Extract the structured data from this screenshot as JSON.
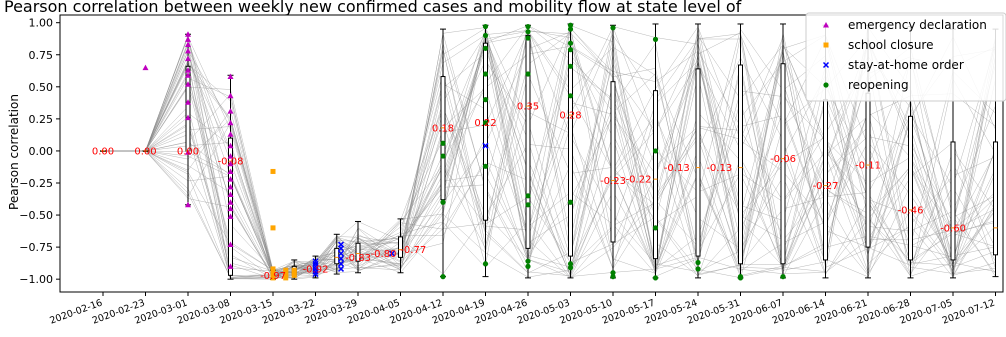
{
  "chart_data": {
    "type": "box",
    "title": "Pearson correlation between weekly new confirmed cases and mobility flow at state level of",
    "xlabel": "",
    "ylabel": "Pearson correlation",
    "ylim": [
      -1.1,
      1.06
    ],
    "yticks": [
      "1.00",
      "0.75",
      "0.50",
      "0.25",
      "0.00",
      "−0.25",
      "−0.50",
      "−0.75",
      "−1.00"
    ],
    "ytick_values": [
      1.0,
      0.75,
      0.5,
      0.25,
      0.0,
      -0.25,
      -0.5,
      -0.75,
      -1.0
    ],
    "categories": [
      "2020-02-16",
      "2020-02-23",
      "2020-03-01",
      "2020-03-08",
      "2020-03-15",
      "2020-03-22",
      "2020-03-29",
      "2020-04-05",
      "2020-04-12",
      "2020-04-19",
      "2020-04-26",
      "2020-05-03",
      "2020-05-10",
      "2020-05-17",
      "2020-05-24",
      "2020-05-31",
      "2020-06-07",
      "2020-06-14",
      "2020-06-21",
      "2020-06-28",
      "2020-07-05",
      "2020-07-12"
    ],
    "x_positions": [
      0,
      1,
      2,
      3,
      4,
      4.5,
      5,
      5.5,
      6,
      7,
      8,
      9,
      10,
      11,
      12,
      13,
      14,
      15,
      16,
      17,
      18,
      19,
      20,
      21
    ],
    "boxes": [
      {
        "x": 0,
        "median": 0.0,
        "q1": 0.0,
        "q3": 0.0,
        "whislo": 0.0,
        "whishi": 0.0
      },
      {
        "x": 1,
        "median": 0.0,
        "q1": 0.0,
        "q3": 0.0,
        "whislo": 0.0,
        "whishi": 0.0
      },
      {
        "x": 2,
        "median": 0.0,
        "q1": 0.0,
        "q3": 0.66,
        "whislo": -0.42,
        "whishi": 0.91
      },
      {
        "x": 3,
        "median": -0.08,
        "q1": -0.97,
        "q3": 0.1,
        "whislo": -1.0,
        "whishi": 0.59
      },
      {
        "x": 4,
        "median": -0.97,
        "q1": -0.99,
        "q3": -0.95,
        "whislo": -1.0,
        "whishi": -0.93
      },
      {
        "x": 4.5,
        "median": -0.94,
        "q1": -0.97,
        "q3": -0.9,
        "whislo": -1.0,
        "whishi": -0.85
      },
      {
        "x": 5,
        "median": -0.92,
        "q1": -0.95,
        "q3": -0.88,
        "whislo": -0.99,
        "whishi": -0.82
      },
      {
        "x": 5.5,
        "median": -0.83,
        "q1": -0.88,
        "q3": -0.76,
        "whislo": -0.96,
        "whishi": -0.65
      },
      {
        "x": 6,
        "median": -0.8,
        "q1": -0.86,
        "q3": -0.72,
        "whislo": -0.95,
        "whishi": -0.55
      },
      {
        "x": 7,
        "median": -0.77,
        "q1": -0.83,
        "q3": -0.67,
        "whislo": -0.95,
        "whishi": -0.53
      },
      {
        "x": 8,
        "median": 0.18,
        "q1": -0.38,
        "q3": 0.58,
        "whislo": -0.98,
        "whishi": 0.95
      },
      {
        "x": 9,
        "median": 0.22,
        "q1": -0.54,
        "q3": 0.84,
        "whislo": -0.98,
        "whishi": 0.98
      },
      {
        "x": 10,
        "median": 0.35,
        "q1": -0.76,
        "q3": 0.9,
        "whislo": -0.99,
        "whishi": 0.98
      },
      {
        "x": 11,
        "median": 0.28,
        "q1": -0.82,
        "q3": 0.79,
        "whislo": -0.99,
        "whishi": 0.99
      },
      {
        "x": 12,
        "median": -0.23,
        "q1": -0.71,
        "q3": 0.54,
        "whislo": -0.99,
        "whishi": 0.98
      },
      {
        "x": 13,
        "median": -0.22,
        "q1": -0.84,
        "q3": 0.47,
        "whislo": -0.99,
        "whishi": 0.99
      },
      {
        "x": 14,
        "median": -0.13,
        "q1": -0.82,
        "q3": 0.64,
        "whislo": -0.99,
        "whishi": 0.99
      },
      {
        "x": 15,
        "median": -0.13,
        "q1": -0.88,
        "q3": 0.67,
        "whislo": -0.99,
        "whishi": 0.99
      },
      {
        "x": 16,
        "median": -0.06,
        "q1": -0.88,
        "q3": 0.68,
        "whislo": -0.99,
        "whishi": 0.99
      },
      {
        "x": 17,
        "median": -0.27,
        "q1": -0.85,
        "q3": 0.4,
        "whislo": -0.99,
        "whishi": 0.98
      },
      {
        "x": 18,
        "median": -0.11,
        "q1": -0.75,
        "q3": 0.45,
        "whislo": -0.99,
        "whishi": 0.98
      },
      {
        "x": 19,
        "median": -0.46,
        "q1": -0.85,
        "q3": 0.27,
        "whislo": -0.99,
        "whishi": 0.97
      },
      {
        "x": 20,
        "median": -0.6,
        "q1": -0.85,
        "q3": 0.07,
        "whislo": -0.99,
        "whishi": 0.95
      },
      {
        "x": 21,
        "median": -0.6,
        "q1": -0.81,
        "q3": 0.07,
        "whislo": -0.98,
        "whishi": 0.95
      }
    ],
    "median_labels": [
      {
        "x": 0,
        "y": 0.0,
        "text": "0.00"
      },
      {
        "x": 1,
        "y": 0.0,
        "text": "0.00"
      },
      {
        "x": 2,
        "y": 0.0,
        "text": "0.00"
      },
      {
        "x": 3,
        "y": -0.08,
        "text": "-0.08"
      },
      {
        "x": 4,
        "y": -0.97,
        "text": "-0.97"
      },
      {
        "x": 5,
        "y": -0.92,
        "text": "-0.92"
      },
      {
        "x": 6,
        "y": -0.83,
        "text": "-0.83"
      },
      {
        "x": 6.6,
        "y": -0.8,
        "text": "-0.80"
      },
      {
        "x": 7.3,
        "y": -0.77,
        "text": "-0.77"
      },
      {
        "x": 8,
        "y": 0.18,
        "text": "0.18"
      },
      {
        "x": 9,
        "y": 0.22,
        "text": "0.22"
      },
      {
        "x": 10,
        "y": 0.35,
        "text": "0.35"
      },
      {
        "x": 11,
        "y": 0.28,
        "text": "0.28"
      },
      {
        "x": 12,
        "y": -0.23,
        "text": "-0.23"
      },
      {
        "x": 12.6,
        "y": -0.22,
        "text": "-0.22"
      },
      {
        "x": 13.5,
        "y": -0.13,
        "text": "-0.13"
      },
      {
        "x": 14.5,
        "y": -0.13,
        "text": "-0.13"
      },
      {
        "x": 16,
        "y": -0.06,
        "text": "-0.06"
      },
      {
        "x": 17,
        "y": -0.27,
        "text": "-0.27"
      },
      {
        "x": 18,
        "y": -0.11,
        "text": "-0.11"
      },
      {
        "x": 19,
        "y": -0.46,
        "text": "-0.46"
      },
      {
        "x": 20,
        "y": -0.6,
        "text": "-0.60"
      }
    ],
    "events": [
      {
        "name": "emergency declaration",
        "color": "#bf00bf",
        "marker": "triangle",
        "points": [
          [
            1,
            0.65
          ],
          [
            2,
            0.91
          ],
          [
            2,
            0.87
          ],
          [
            2,
            0.83
          ],
          [
            2,
            0.78
          ],
          [
            2,
            0.72
          ],
          [
            2,
            0.63
          ],
          [
            2,
            0.59
          ],
          [
            2,
            0.52
          ],
          [
            2,
            0.38
          ],
          [
            2,
            0.26
          ],
          [
            2,
            -0.01
          ],
          [
            2,
            -0.42
          ],
          [
            3,
            0.58
          ],
          [
            3,
            0.43
          ],
          [
            3,
            0.31
          ],
          [
            3,
            0.22
          ],
          [
            3,
            0.13
          ],
          [
            3,
            0.04
          ],
          [
            3,
            -0.04
          ],
          [
            3,
            -0.1
          ],
          [
            3,
            -0.16
          ],
          [
            3,
            -0.22
          ],
          [
            3,
            -0.28
          ],
          [
            3,
            -0.34
          ],
          [
            3,
            -0.4
          ],
          [
            3,
            -0.45
          ],
          [
            3,
            -0.51
          ],
          [
            3,
            -0.73
          ],
          [
            3,
            -0.9
          ]
        ]
      },
      {
        "name": "school closure",
        "color": "#ffa500",
        "marker": "square",
        "points": [
          [
            4,
            -0.16
          ],
          [
            4,
            -0.6
          ],
          [
            4,
            -0.92
          ],
          [
            4,
            -0.94
          ],
          [
            4,
            -0.95
          ],
          [
            4,
            -0.96
          ],
          [
            4,
            -0.97
          ],
          [
            4,
            -0.98
          ],
          [
            4,
            -0.99
          ],
          [
            4.3,
            -0.97
          ],
          [
            4.3,
            -0.95
          ],
          [
            4.3,
            -0.93
          ],
          [
            4.3,
            -0.99
          ],
          [
            4.5,
            -0.93
          ],
          [
            4.5,
            -0.95
          ],
          [
            4.5,
            -0.97
          ]
        ]
      },
      {
        "name": "stay-at-home order",
        "color": "#0000ff",
        "marker": "x",
        "points": [
          [
            5,
            -0.86
          ],
          [
            5,
            -0.88
          ],
          [
            5,
            -0.9
          ],
          [
            5,
            -0.92
          ],
          [
            5,
            -0.94
          ],
          [
            5,
            -0.96
          ],
          [
            5.6,
            -0.73
          ],
          [
            5.6,
            -0.76
          ],
          [
            5.6,
            -0.8
          ],
          [
            5.6,
            -0.84
          ],
          [
            5.6,
            -0.88
          ],
          [
            5.6,
            -0.92
          ],
          [
            6.8,
            -0.8
          ],
          [
            9,
            0.04
          ]
        ]
      },
      {
        "name": "reopening",
        "color": "#008000",
        "marker": "circle",
        "points": [
          [
            8,
            0.06
          ],
          [
            8,
            -0.04
          ],
          [
            8,
            -0.4
          ],
          [
            8,
            -0.98
          ],
          [
            9,
            0.97
          ],
          [
            9,
            0.9
          ],
          [
            9,
            0.8
          ],
          [
            9,
            0.6
          ],
          [
            9,
            0.4
          ],
          [
            9,
            0.22
          ],
          [
            9,
            -0.12
          ],
          [
            9,
            -0.88
          ],
          [
            10,
            0.97
          ],
          [
            10,
            0.93
          ],
          [
            10,
            0.88
          ],
          [
            10,
            0.6
          ],
          [
            10,
            -0.35
          ],
          [
            10,
            -0.42
          ],
          [
            10,
            -0.86
          ],
          [
            10,
            -0.9
          ],
          [
            11,
            0.98
          ],
          [
            11,
            0.95
          ],
          [
            11,
            0.84
          ],
          [
            11,
            0.79
          ],
          [
            11,
            0.66
          ],
          [
            11,
            0.43
          ],
          [
            11,
            -0.4
          ],
          [
            11,
            -0.88
          ],
          [
            11,
            -0.91
          ],
          [
            12,
            0.96
          ],
          [
            12,
            -0.95
          ],
          [
            12,
            -0.98
          ],
          [
            13,
            0.87
          ],
          [
            13,
            0.0
          ],
          [
            13,
            -0.6
          ],
          [
            13,
            -0.99
          ],
          [
            14,
            -0.87
          ],
          [
            14,
            -0.92
          ],
          [
            15,
            -0.98
          ],
          [
            15,
            -0.99
          ],
          [
            16,
            -0.98
          ]
        ]
      }
    ],
    "legend": {
      "location": "top-right",
      "entries": [
        "emergency declaration",
        "school closure",
        "stay-at-home order",
        "reopening"
      ]
    },
    "colors": {
      "median": "#ff0000",
      "box": "#000000",
      "lines": "#888888"
    },
    "grid": false
  }
}
